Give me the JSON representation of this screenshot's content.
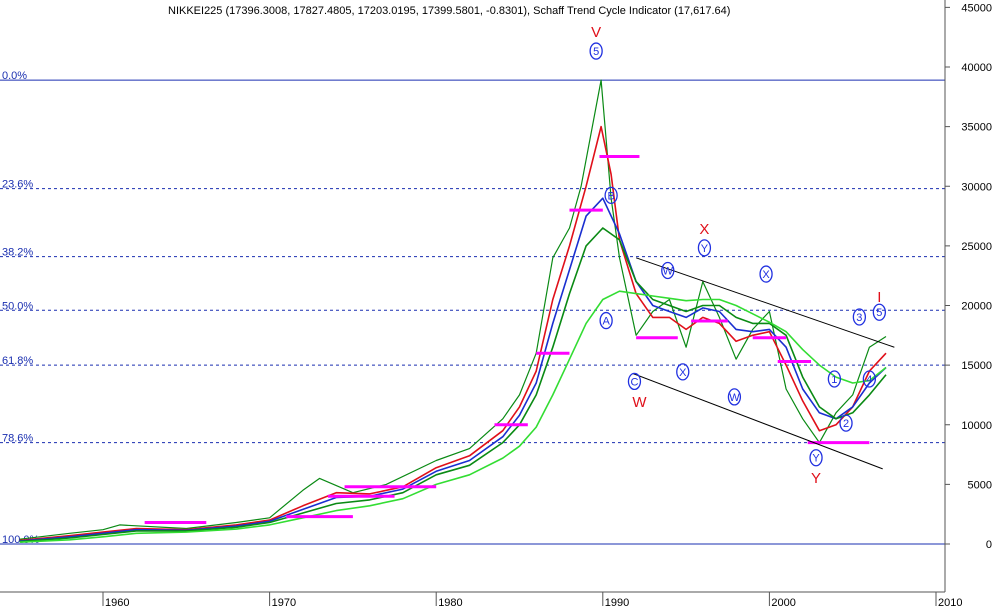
{
  "chart_data": {
    "type": "line",
    "title": "NIKKEI225 (17396.3008, 17827.4805, 17203.0195, 17399.5801, -0.8301), Schaff Trend Cycle Indicator (17,617.64)",
    "x_ticks": [
      "1960",
      "1970",
      "1980",
      "1990",
      "2000",
      "2010"
    ],
    "x_range": [
      1954,
      2010
    ],
    "y_ticks": [
      "0",
      "5000",
      "10000",
      "15000",
      "20000",
      "25000",
      "30000",
      "35000",
      "40000",
      "45000"
    ],
    "y_range": [
      -3500,
      45000
    ],
    "fib_levels": [
      {
        "label": "0.0%",
        "value": 38900
      },
      {
        "label": "23.6%",
        "value": 29800
      },
      {
        "label": "38.2%",
        "value": 24100
      },
      {
        "label": "50.0%",
        "value": 19600
      },
      {
        "label": "61.8%",
        "value": 15000
      },
      {
        "label": "78.6%",
        "value": 8500
      },
      {
        "label": "100.0%",
        "value": 0
      }
    ],
    "series": [
      {
        "color": "#0a8a14",
        "x": [
          1955,
          1958,
          1960,
          1961,
          1965,
          1968,
          1970,
          1972,
          1973,
          1975,
          1977,
          1980,
          1982,
          1984,
          1985,
          1986,
          1987,
          1988,
          1988.7,
          1989.9,
          1990.5,
          1991,
          1992,
          1993,
          1994,
          1995,
          1996,
          1997,
          1998,
          1999,
          2000,
          2001,
          2002,
          2003,
          2004,
          2005,
          2006,
          2007
        ],
        "y": [
          400,
          900,
          1200,
          1600,
          1300,
          1800,
          2200,
          4500,
          5500,
          4300,
          5000,
          7000,
          8000,
          10500,
          12500,
          16000,
          24000,
          26500,
          30000,
          38900,
          29000,
          24000,
          17500,
          19500,
          20500,
          16500,
          22000,
          19000,
          15500,
          18000,
          19500,
          13000,
          10500,
          8500,
          11000,
          12500,
          16500,
          17400
        ]
      },
      {
        "color": "#e0101a",
        "x": [
          1955,
          1958,
          1960,
          1962,
          1965,
          1968,
          1970,
          1972,
          1974,
          1976,
          1978,
          1980,
          1982,
          1984,
          1985,
          1986,
          1987,
          1988,
          1989,
          1989.9,
          1990.5,
          1991,
          1992,
          1993,
          1994,
          1995,
          1996,
          1997,
          1998,
          1999,
          2000,
          2001,
          2002,
          2003,
          2004,
          2005,
          2006,
          2007
        ],
        "y": [
          300,
          700,
          1000,
          1300,
          1200,
          1600,
          2000,
          3200,
          4300,
          4200,
          4800,
          6400,
          7400,
          9500,
          11500,
          14500,
          20500,
          25000,
          30000,
          35000,
          31000,
          25500,
          21000,
          19000,
          19000,
          18000,
          19000,
          18500,
          17000,
          17500,
          17800,
          15000,
          12000,
          9500,
          10000,
          11500,
          14500,
          16000
        ]
      },
      {
        "color": "#1a2fd0",
        "x": [
          1955,
          1958,
          1960,
          1962,
          1965,
          1968,
          1970,
          1972,
          1974,
          1976,
          1978,
          1980,
          1982,
          1984,
          1985,
          1986,
          1987,
          1988,
          1989,
          1990,
          1991,
          1992,
          1993,
          1994,
          1995,
          1996,
          1997,
          1998,
          1999,
          2000,
          2001,
          2002,
          2003,
          2004,
          2005,
          2006,
          2007
        ],
        "y": [
          250,
          600,
          900,
          1200,
          1150,
          1500,
          1900,
          2900,
          3900,
          4000,
          4600,
          6100,
          7000,
          9000,
          10800,
          13500,
          18500,
          23000,
          27500,
          29000,
          26000,
          22000,
          20000,
          19500,
          19000,
          19800,
          19500,
          18000,
          17800,
          18000,
          16500,
          13000,
          11000,
          10500,
          11500,
          13500,
          14800
        ]
      },
      {
        "color": "#0a8a14",
        "x": [
          1955,
          1958,
          1960,
          1962,
          1965,
          1968,
          1970,
          1972,
          1974,
          1976,
          1978,
          1980,
          1982,
          1984,
          1985,
          1986,
          1987,
          1988,
          1989,
          1990,
          1991,
          1992,
          1993,
          1994,
          1995,
          1996,
          1997,
          1998,
          1999,
          2000,
          2001,
          2002,
          2003,
          2004,
          2005,
          2006,
          2007
        ],
        "y": [
          200,
          500,
          800,
          1100,
          1100,
          1400,
          1800,
          2600,
          3400,
          3700,
          4300,
          5800,
          6600,
          8500,
          10000,
          12500,
          16500,
          21000,
          25000,
          26500,
          25500,
          22000,
          20500,
          20000,
          19500,
          20000,
          20000,
          19000,
          18500,
          18500,
          17500,
          14000,
          11500,
          10500,
          11000,
          12500,
          14200
        ]
      },
      {
        "color": "#33dd33",
        "x": [
          1955,
          1958,
          1960,
          1962,
          1965,
          1968,
          1970,
          1972,
          1974,
          1976,
          1978,
          1980,
          1982,
          1984,
          1985,
          1986,
          1987,
          1988,
          1989,
          1990,
          1991,
          1992,
          1993,
          1994,
          1995,
          1996,
          1997,
          1998,
          1999,
          2000,
          2001,
          2002,
          2003,
          2004,
          2005,
          2006,
          2007
        ],
        "y": [
          150,
          350,
          600,
          900,
          1000,
          1250,
          1600,
          2200,
          2800,
          3200,
          3800,
          5000,
          5800,
          7200,
          8200,
          9800,
          12500,
          15500,
          18500,
          20500,
          21200,
          21000,
          20800,
          20600,
          20400,
          20500,
          20500,
          20000,
          19300,
          18600,
          17800,
          16300,
          15000,
          14000,
          13500,
          13700,
          14800
        ]
      }
    ],
    "channel_lines": [
      {
        "color": "#000000",
        "x": [
          1992,
          2007.5
        ],
        "y": [
          24000,
          16500
        ]
      },
      {
        "color": "#000000",
        "x": [
          1991.8,
          2006.8
        ],
        "y": [
          14300,
          6300
        ]
      }
    ],
    "levels_marks": {
      "color": "#ff00ff",
      "segments": [
        {
          "x": [
            1962.5,
            1966.2
          ],
          "y": 1800
        },
        {
          "x": [
            1971,
            1975
          ],
          "y": 2300
        },
        {
          "x": [
            1973.5,
            1977.5
          ],
          "y": 4000
        },
        {
          "x": [
            1974.5,
            1980
          ],
          "y": 4800
        },
        {
          "x": [
            1986,
            1988
          ],
          "y": 16000
        },
        {
          "x": [
            1988,
            1990
          ],
          "y": 28000
        },
        {
          "x": [
            1989.8,
            1992.2
          ],
          "y": 32500
        },
        {
          "x": [
            1983.5,
            1985.5
          ],
          "y": 10000
        },
        {
          "x": [
            1992,
            1994.5
          ],
          "y": 17300
        },
        {
          "x": [
            1995.3,
            1997.5
          ],
          "y": 18700
        },
        {
          "x": [
            1999,
            2001
          ],
          "y": 17300
        },
        {
          "x": [
            2000.5,
            2002.5
          ],
          "y": 15300
        },
        {
          "x": [
            2002.3,
            2006
          ],
          "y": 8500
        }
      ]
    },
    "annotations": [
      {
        "text": "V",
        "x": 1989.6,
        "y": 42500,
        "style": "red"
      },
      {
        "text": "X",
        "x": 1996.1,
        "y": 26000,
        "style": "red"
      },
      {
        "text": "W",
        "x": 1992.2,
        "y": 11500,
        "style": "red"
      },
      {
        "text": "Y",
        "x": 2002.8,
        "y": 5100,
        "style": "red"
      },
      {
        "text": "I",
        "x": 2006.6,
        "y": 20300,
        "style": "red"
      },
      {
        "text": "5",
        "x": 1989.6,
        "y": 41000,
        "style": "blue"
      },
      {
        "text": "B",
        "x": 1990.5,
        "y": 28900,
        "style": "blue"
      },
      {
        "text": "A",
        "x": 1990.2,
        "y": 18400,
        "style": "blue"
      },
      {
        "text": "C",
        "x": 1991.9,
        "y": 13300,
        "style": "blue"
      },
      {
        "text": "W",
        "x": 1993.9,
        "y": 22600,
        "style": "blue"
      },
      {
        "text": "X",
        "x": 1994.8,
        "y": 14100,
        "style": "blue"
      },
      {
        "text": "Y",
        "x": 1996.1,
        "y": 24500,
        "style": "blue"
      },
      {
        "text": "W",
        "x": 1997.9,
        "y": 12000,
        "style": "blue"
      },
      {
        "text": "X",
        "x": 1999.8,
        "y": 22300,
        "style": "blue"
      },
      {
        "text": "Y",
        "x": 2002.8,
        "y": 6900,
        "style": "blue"
      },
      {
        "text": "1",
        "x": 2003.9,
        "y": 13500,
        "style": "blue"
      },
      {
        "text": "2",
        "x": 2004.6,
        "y": 9800,
        "style": "blue"
      },
      {
        "text": "3",
        "x": 2005.4,
        "y": 18700,
        "style": "blue"
      },
      {
        "text": "4",
        "x": 2006.0,
        "y": 13500,
        "style": "blue"
      },
      {
        "text": "5",
        "x": 2006.6,
        "y": 19100,
        "style": "blue"
      }
    ]
  }
}
